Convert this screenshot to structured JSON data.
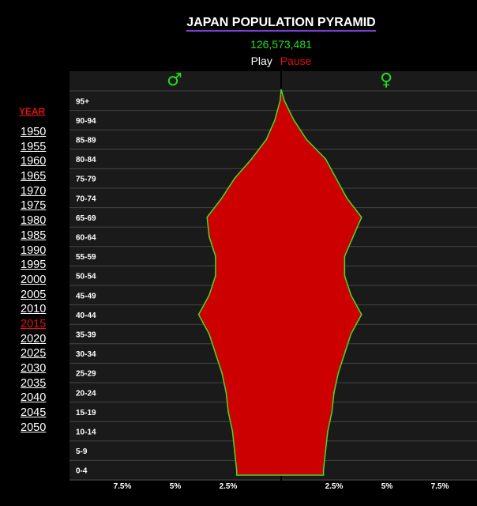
{
  "title": "JAPAN POPULATION PYRAMID",
  "total_population": "126,573,481",
  "controls": {
    "play_label": "Play",
    "pause_label": "Pause"
  },
  "year_header": "YEAR",
  "years": [
    "1950",
    "1955",
    "1960",
    "1965",
    "1970",
    "1975",
    "1980",
    "1985",
    "1990",
    "1995",
    "2000",
    "2005",
    "2010",
    "2015",
    "2020",
    "2025",
    "2030",
    "2035",
    "2040",
    "2045",
    "2050"
  ],
  "selected_year": "2015",
  "colors": {
    "fill": "#cc0000",
    "outline": "#44dd22",
    "plot_bg": "#1a1a1a",
    "grid": "#444444",
    "accent": "#e01010",
    "gender_icon": "#22dd22"
  },
  "gender_icons": {
    "male": "♂",
    "female": "♀"
  },
  "chart_data": {
    "type": "area",
    "title": "JAPAN POPULATION PYRAMID",
    "orientation": "horizontal-pyramid",
    "unit": "% of total population",
    "age_groups": [
      "0-4",
      "5-9",
      "10-14",
      "15-19",
      "20-24",
      "25-29",
      "30-34",
      "35-39",
      "40-44",
      "45-49",
      "50-54",
      "55-59",
      "60-64",
      "65-69",
      "70-74",
      "75-79",
      "80-84",
      "85-89",
      "90-94",
      "95+"
    ],
    "series": [
      {
        "name": "♂",
        "values": [
          2.1,
          2.2,
          2.3,
          2.5,
          2.6,
          2.8,
          3.1,
          3.4,
          3.9,
          3.4,
          3.1,
          3.1,
          3.4,
          3.5,
          2.8,
          2.2,
          1.4,
          0.7,
          0.3,
          0.05
        ]
      },
      {
        "name": "♀",
        "values": [
          2.0,
          2.1,
          2.2,
          2.4,
          2.5,
          2.7,
          3.0,
          3.3,
          3.8,
          3.3,
          3.0,
          3.0,
          3.4,
          3.8,
          3.1,
          2.6,
          2.1,
          1.2,
          0.6,
          0.15
        ]
      }
    ],
    "x_ticks": [
      "7.5%",
      "5%",
      "2.5%",
      "",
      "2.5%",
      "5%",
      "7.5%"
    ],
    "xlim": [
      -10,
      10
    ],
    "grid": true
  }
}
